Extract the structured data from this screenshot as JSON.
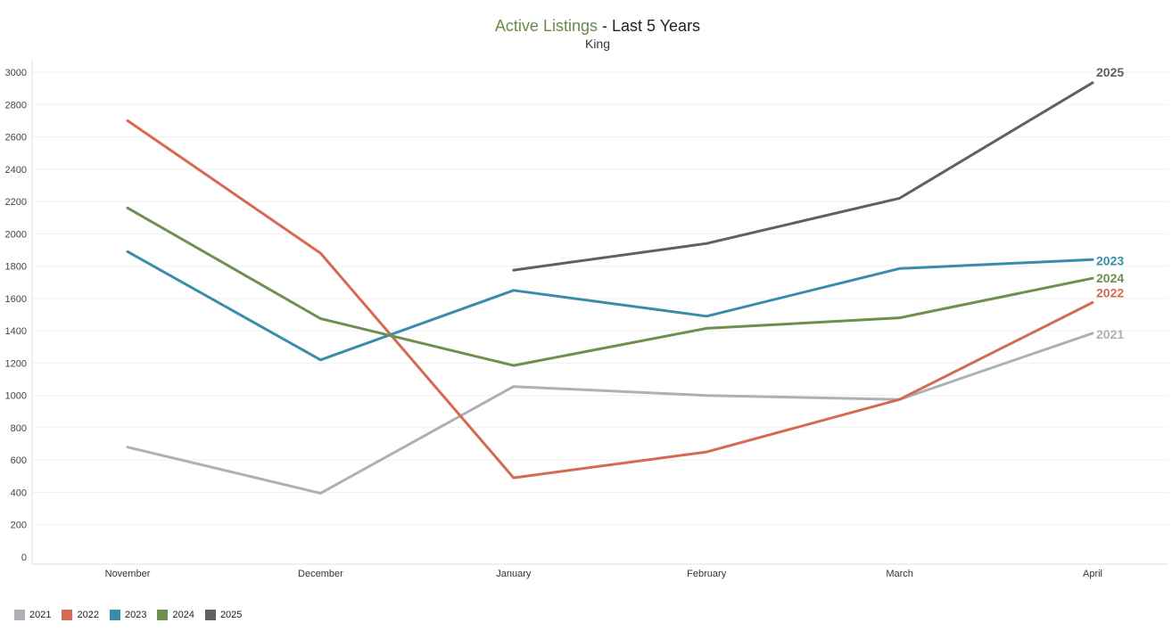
{
  "title": {
    "accent": "Active Listings",
    "rest": " - Last 5 Years"
  },
  "subtitle": "King",
  "chart_data": {
    "type": "line",
    "title": "Active Listings - Last 5 Years",
    "subtitle": "King",
    "categories": [
      "November",
      "December",
      "January",
      "February",
      "March",
      "April"
    ],
    "yticks": [
      0,
      200,
      400,
      600,
      800,
      1000,
      1200,
      1400,
      1600,
      1800,
      2000,
      2200,
      2400,
      2600,
      2800,
      3000
    ],
    "ylim": [
      0,
      3000
    ],
    "grid": true,
    "legend": "bottom-left",
    "series": [
      {
        "name": "2021",
        "color": "#adb1b7",
        "values": [
          680,
          395,
          1055,
          1000,
          975,
          1385
        ]
      },
      {
        "name": "2022",
        "color": "#d6694f",
        "values": [
          2700,
          1880,
          490,
          650,
          975,
          1575
        ]
      },
      {
        "name": "2023",
        "color": "#3a8cab",
        "values": [
          1890,
          1220,
          1650,
          1490,
          1785,
          1840
        ]
      },
      {
        "name": "2024",
        "color": "#6f8f4e",
        "values": [
          2160,
          1475,
          1185,
          1415,
          1480,
          1725
        ]
      },
      {
        "name": "2025",
        "color": "#5c6163",
        "values": [
          null,
          null,
          1775,
          1940,
          2220,
          2935
        ]
      }
    ]
  }
}
